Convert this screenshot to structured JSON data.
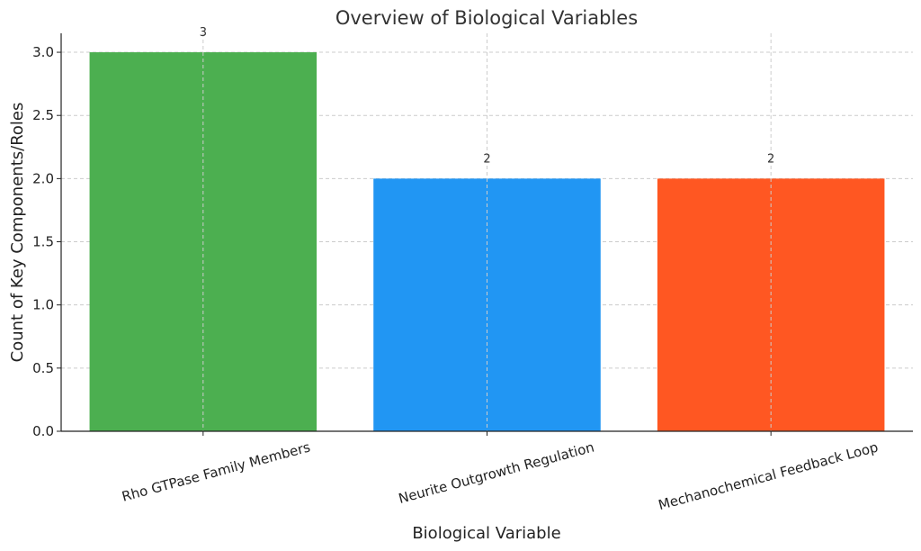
{
  "chart_data": {
    "type": "bar",
    "title": "Overview of Biological Variables",
    "xlabel": "Biological Variable",
    "ylabel": "Count of Key Components/Roles",
    "categories": [
      "Rho GTPase Family Members",
      "Neurite Outgrowth Regulation",
      "Mechanochemical Feedback Loop"
    ],
    "values": [
      3,
      2,
      2
    ],
    "data_labels": [
      "3",
      "2",
      "2"
    ],
    "colors": [
      "#4caf50",
      "#2196f3",
      "#ff5722"
    ],
    "ylim": [
      0,
      3.15
    ],
    "yticks": [
      0.0,
      0.5,
      1.0,
      1.5,
      2.0,
      2.5,
      3.0
    ],
    "ytick_labels": [
      "0.0",
      "0.5",
      "1.0",
      "1.5",
      "2.0",
      "2.5",
      "3.0"
    ],
    "grid": true
  }
}
